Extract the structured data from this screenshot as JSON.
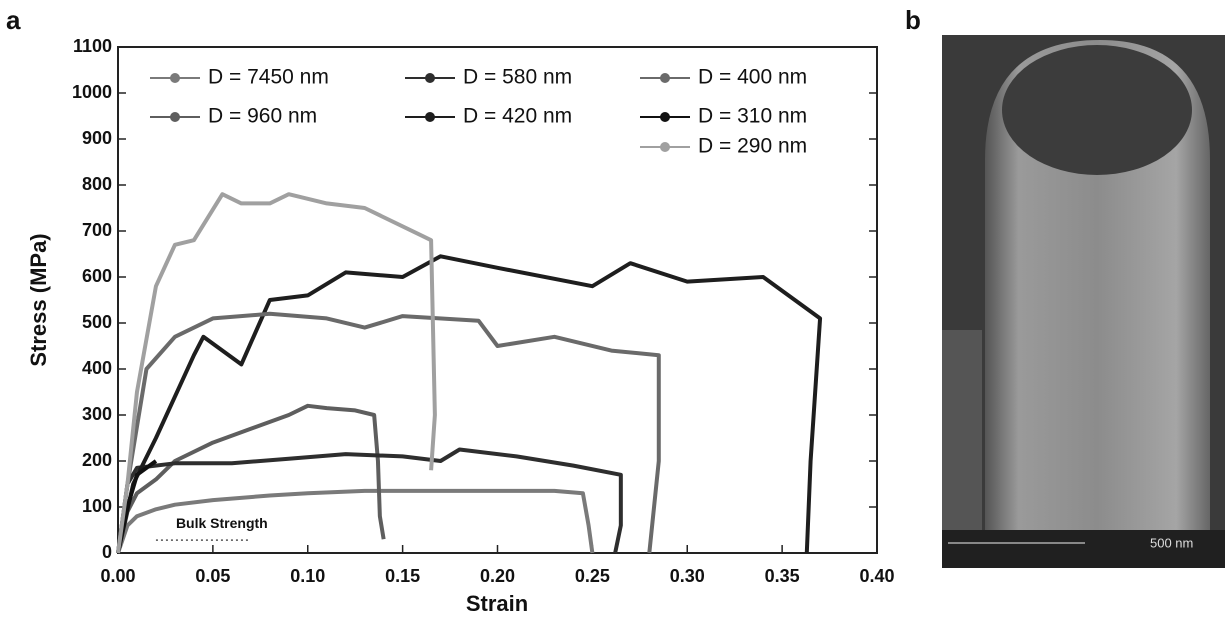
{
  "chart_data": {
    "type": "line",
    "panel_label": "a",
    "xlabel": "Strain",
    "ylabel": "Stress (MPa)",
    "xlim": [
      0,
      0.4
    ],
    "ylim": [
      0,
      1100
    ],
    "xticks": [
      {
        "value": 0,
        "label": "0.00"
      },
      {
        "value": 0.05,
        "label": "0.05"
      },
      {
        "value": 0.1,
        "label": "0.10"
      },
      {
        "value": 0.15,
        "label": "0.15"
      },
      {
        "value": 0.2,
        "label": "0.20"
      },
      {
        "value": 0.25,
        "label": "0.25"
      },
      {
        "value": 0.3,
        "label": "0.30"
      },
      {
        "value": 0.35,
        "label": "0.35"
      },
      {
        "value": 0.4,
        "label": "0.40"
      }
    ],
    "yticks": [
      0,
      100,
      200,
      300,
      400,
      500,
      600,
      700,
      800,
      900,
      1000,
      1100
    ],
    "annotation": "Bulk Strength",
    "annotation_x": [
      0.02,
      0.07
    ],
    "annotation_y": 28,
    "series": [
      {
        "name": "D = 7450 nm",
        "color": "#7a7a7a",
        "x": [
          0,
          0.005,
          0.01,
          0.02,
          0.03,
          0.05,
          0.08,
          0.1,
          0.13,
          0.16,
          0.2,
          0.23,
          0.245,
          0.248,
          0.25
        ],
        "values": [
          0,
          60,
          80,
          95,
          105,
          115,
          125,
          130,
          135,
          135,
          135,
          135,
          130,
          60,
          0
        ]
      },
      {
        "name": "D = 960 nm",
        "color": "#5e5e5e",
        "x": [
          0,
          0.005,
          0.01,
          0.02,
          0.03,
          0.05,
          0.07,
          0.09,
          0.1,
          0.11,
          0.125,
          0.135,
          0.137,
          0.138,
          0.14
        ],
        "values": [
          0,
          90,
          130,
          160,
          200,
          240,
          270,
          300,
          320,
          315,
          310,
          300,
          200,
          80,
          30
        ]
      },
      {
        "name": "D = 580 nm",
        "color": "#2e2e2e",
        "x": [
          0,
          0.005,
          0.01,
          0.03,
          0.06,
          0.09,
          0.12,
          0.15,
          0.17,
          0.18,
          0.21,
          0.24,
          0.265,
          0.265,
          0.262
        ],
        "values": [
          0,
          150,
          185,
          195,
          195,
          205,
          215,
          210,
          200,
          225,
          210,
          190,
          170,
          60,
          0
        ]
      },
      {
        "name": "D = 420 nm",
        "color": "#1e1e1e",
        "x": [
          0,
          0.008,
          0.02,
          0.04,
          0.045,
          0.065,
          0.08,
          0.1,
          0.12,
          0.15,
          0.17,
          0.2,
          0.25,
          0.27,
          0.3,
          0.34,
          0.37,
          0.365,
          0.363
        ],
        "values": [
          0,
          150,
          250,
          430,
          470,
          410,
          550,
          560,
          610,
          600,
          645,
          620,
          580,
          630,
          590,
          600,
          510,
          200,
          0
        ]
      },
      {
        "name": "D = 400 nm",
        "color": "#6a6a6a",
        "x": [
          0,
          0.005,
          0.015,
          0.03,
          0.05,
          0.08,
          0.11,
          0.13,
          0.15,
          0.19,
          0.2,
          0.23,
          0.26,
          0.285,
          0.285,
          0.28
        ],
        "values": [
          0,
          150,
          400,
          470,
          510,
          520,
          510,
          490,
          515,
          505,
          450,
          470,
          440,
          430,
          200,
          0
        ]
      },
      {
        "name": "D = 310 nm",
        "color": "#111111",
        "x": [
          0,
          0.005,
          0.01,
          0.02
        ],
        "values": [
          0,
          100,
          170,
          200
        ]
      },
      {
        "name": "D = 290 nm",
        "color": "#a0a0a0",
        "x": [
          0,
          0.005,
          0.01,
          0.02,
          0.03,
          0.04,
          0.055,
          0.065,
          0.08,
          0.09,
          0.11,
          0.13,
          0.16,
          0.165,
          0.167,
          0.165
        ],
        "values": [
          0,
          150,
          350,
          580,
          670,
          680,
          780,
          760,
          760,
          780,
          760,
          750,
          690,
          680,
          300,
          180
        ]
      }
    ]
  },
  "image_panel": {
    "panel_label": "b",
    "scale_bar": "500 nm"
  }
}
